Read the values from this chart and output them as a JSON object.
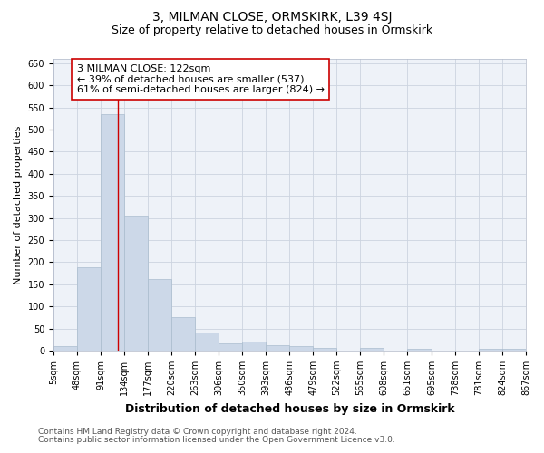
{
  "title": "3, MILMAN CLOSE, ORMSKIRK, L39 4SJ",
  "subtitle": "Size of property relative to detached houses in Ormskirk",
  "xlabel": "Distribution of detached houses by size in Ormskirk",
  "ylabel": "Number of detached properties",
  "bin_edges": [
    5,
    48,
    91,
    134,
    177,
    220,
    263,
    306,
    350,
    393,
    436,
    479,
    522,
    565,
    608,
    651,
    695,
    738,
    781,
    824,
    867
  ],
  "bar_heights": [
    10,
    188,
    535,
    305,
    162,
    75,
    40,
    17,
    20,
    12,
    10,
    7,
    0,
    6,
    0,
    5,
    0,
    0,
    5,
    5
  ],
  "bar_color": "#ccd8e8",
  "bar_edgecolor": "#aabcce",
  "grid_color": "#ccd4e0",
  "vline_x": 122,
  "vline_color": "#cc0000",
  "ylim": [
    0,
    660
  ],
  "yticks": [
    0,
    50,
    100,
    150,
    200,
    250,
    300,
    350,
    400,
    450,
    500,
    550,
    600,
    650
  ],
  "annotation_text": "3 MILMAN CLOSE: 122sqm\n← 39% of detached houses are smaller (537)\n61% of semi-detached houses are larger (824) →",
  "annotation_box_color": "#ffffff",
  "annotation_box_edgecolor": "#cc0000",
  "footnote1": "Contains HM Land Registry data © Crown copyright and database right 2024.",
  "footnote2": "Contains public sector information licensed under the Open Government Licence v3.0.",
  "background_color": "#eef2f8",
  "title_fontsize": 10,
  "subtitle_fontsize": 9,
  "xlabel_fontsize": 9,
  "ylabel_fontsize": 8,
  "tick_fontsize": 7,
  "annotation_fontsize": 8,
  "footnote_fontsize": 6.5
}
